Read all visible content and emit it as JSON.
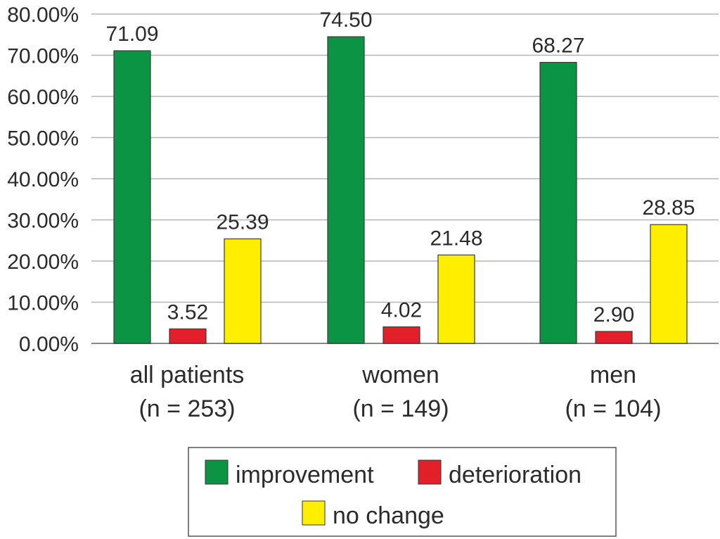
{
  "chart_data": {
    "type": "bar",
    "categories": [
      [
        "all patients",
        "(n = 253)"
      ],
      [
        "women",
        "(n = 149)"
      ],
      [
        "men",
        "(n = 104)"
      ]
    ],
    "series": [
      {
        "name": "improvement",
        "values": [
          71.09,
          74.5,
          68.27
        ],
        "labels": [
          "71.09",
          "74.50",
          "68.27"
        ],
        "color": "#0a9444"
      },
      {
        "name": "deterioration",
        "values": [
          3.52,
          4.02,
          2.9
        ],
        "labels": [
          "3.52",
          "4.02",
          "2.90"
        ],
        "color": "#e3202a"
      },
      {
        "name": "no change",
        "values": [
          25.39,
          21.48,
          28.85
        ],
        "labels": [
          "25.39",
          "21.48",
          "28.85"
        ],
        "color": "#ffee00"
      }
    ],
    "yticks": [
      "0.00%",
      "10.00%",
      "20.00%",
      "30.00%",
      "40.00%",
      "50.00%",
      "60.00%",
      "70.00%",
      "80.00%"
    ],
    "ylim": [
      0,
      80
    ],
    "grid": true,
    "legend_position": "bottom"
  }
}
